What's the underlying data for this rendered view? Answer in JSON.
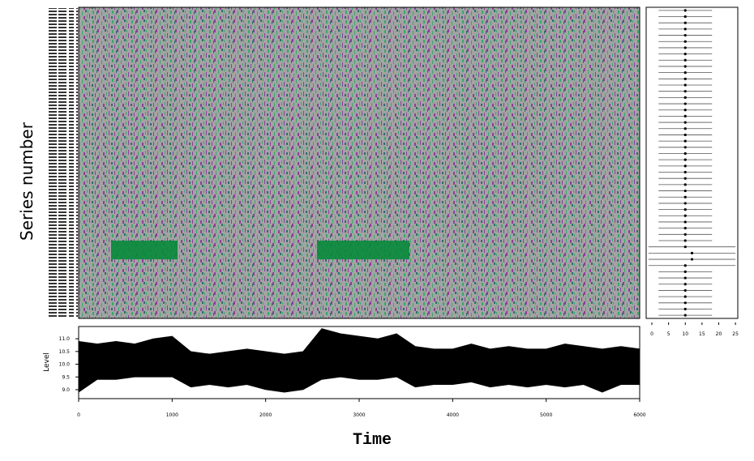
{
  "chart_data": [
    {
      "type": "heatmap",
      "ylabel": "Series number",
      "xlim": [
        0,
        6000
      ],
      "ylim": [
        0,
        100
      ],
      "segments": [
        {
          "x": [
            347,
            1058
          ],
          "y": [
            75,
            81
          ],
          "color": "#0a8a3c"
        },
        {
          "x": [
            2549,
            3537
          ],
          "y": [
            75,
            81
          ],
          "color": "#0a8a3c"
        }
      ]
    },
    {
      "type": "interval",
      "xlim": [
        -1.7,
        25.7
      ],
      "xticks": [
        0,
        5,
        10,
        15,
        20,
        25
      ],
      "rows": [
        [
          2,
          10,
          18
        ],
        [
          2,
          10,
          18
        ],
        [
          2,
          10,
          18
        ],
        [
          2,
          10,
          18
        ],
        [
          2,
          10,
          18
        ],
        [
          2,
          10,
          18
        ],
        [
          2,
          10,
          18
        ],
        [
          2,
          10,
          18
        ],
        [
          2,
          10,
          18
        ],
        [
          2,
          10,
          18
        ],
        [
          2,
          10,
          18
        ],
        [
          2,
          10,
          18
        ],
        [
          2,
          10,
          18
        ],
        [
          2,
          10,
          18
        ],
        [
          2,
          10,
          18
        ],
        [
          2,
          10,
          18
        ],
        [
          2,
          10,
          18
        ],
        [
          2,
          10,
          18
        ],
        [
          2,
          10,
          18
        ],
        [
          2,
          10,
          18
        ],
        [
          2,
          10,
          18
        ],
        [
          2,
          10,
          18
        ],
        [
          2,
          10,
          18
        ],
        [
          2,
          10,
          18
        ],
        [
          2,
          10,
          18
        ],
        [
          2,
          10,
          18
        ],
        [
          2,
          10,
          18
        ],
        [
          2,
          10,
          18
        ],
        [
          2,
          10,
          18
        ],
        [
          2,
          10,
          18
        ],
        [
          2,
          10,
          18
        ],
        [
          2,
          10,
          18
        ],
        [
          2,
          10,
          18
        ],
        [
          2,
          10,
          18
        ],
        [
          2,
          10,
          18
        ],
        [
          2,
          10,
          18
        ],
        [
          2,
          10,
          18
        ],
        [
          2,
          10,
          18
        ],
        [
          -1,
          10,
          25
        ],
        [
          -1,
          12,
          25
        ],
        [
          -1,
          12,
          25
        ],
        [
          -1,
          10,
          25
        ],
        [
          2,
          10,
          18
        ],
        [
          2,
          10,
          18
        ],
        [
          2,
          10,
          18
        ],
        [
          2,
          10,
          18
        ],
        [
          2,
          10,
          18
        ],
        [
          2,
          10,
          18
        ],
        [
          2,
          10,
          18
        ],
        [
          2,
          10,
          18
        ]
      ]
    },
    {
      "type": "line",
      "xlabel": "Time",
      "ylabel": "Level",
      "xlim": [
        0,
        6000
      ],
      "ylim": [
        8.65,
        11.48
      ],
      "xticks": [
        0,
        1000,
        2000,
        3000,
        4000,
        5000,
        6000
      ],
      "yticks": [
        {
          "value": 9,
          "label": "9.0"
        },
        9.5,
        {
          "value": 10,
          "label": "10.0"
        },
        10.5,
        {
          "value": 11,
          "label": "11.0"
        }
      ],
      "x": [
        0,
        200,
        400,
        600,
        800,
        1000,
        1200,
        1400,
        1600,
        1800,
        2000,
        2200,
        2400,
        2600,
        2800,
        3000,
        3200,
        3400,
        3600,
        3800,
        4000,
        4200,
        4400,
        4600,
        4800,
        5000,
        5200,
        5400,
        5600,
        5800,
        6000
      ],
      "high": [
        10.9,
        10.8,
        10.9,
        10.8,
        11.0,
        11.1,
        10.5,
        10.4,
        10.5,
        10.6,
        10.5,
        10.4,
        10.5,
        11.4,
        11.2,
        11.1,
        11.0,
        11.2,
        10.7,
        10.6,
        10.6,
        10.8,
        10.6,
        10.7,
        10.6,
        10.6,
        10.8,
        10.7,
        10.6,
        10.7,
        10.6
      ],
      "low": [
        8.9,
        9.4,
        9.4,
        9.5,
        9.5,
        9.5,
        9.1,
        9.2,
        9.1,
        9.2,
        9.0,
        8.9,
        9.0,
        9.4,
        9.5,
        9.4,
        9.4,
        9.5,
        9.1,
        9.2,
        9.2,
        9.3,
        9.1,
        9.2,
        9.1,
        9.2,
        9.1,
        9.2,
        8.9,
        9.2,
        9.2
      ]
    }
  ]
}
